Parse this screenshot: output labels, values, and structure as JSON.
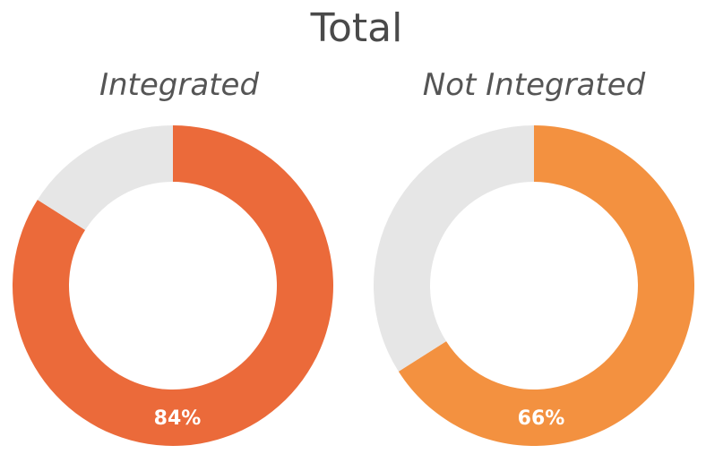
{
  "chart_data": {
    "type": "pie",
    "title": "Total",
    "donut": true,
    "colors": {
      "remainder": "#e6e6e6",
      "label": "#ffffff"
    },
    "charts": [
      {
        "name": "Integrated",
        "value": 84,
        "remainder": 16,
        "label": "84%",
        "color": "#eb6a3a"
      },
      {
        "name": "Not Integrated",
        "value": 66,
        "remainder": 34,
        "label": "66%",
        "color": "#f39140"
      }
    ]
  }
}
